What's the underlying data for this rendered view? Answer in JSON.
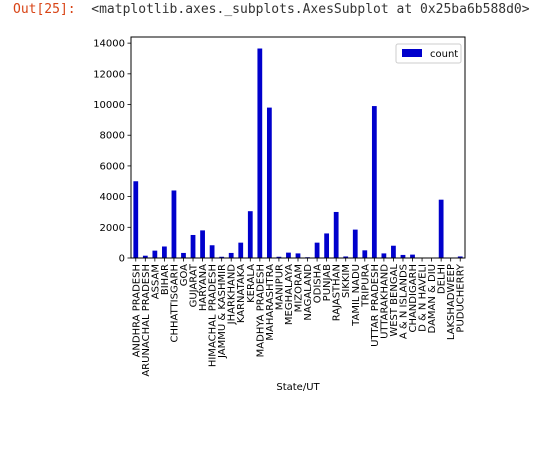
{
  "output": {
    "prompt": "Out[25]:",
    "repr": "<matplotlib.axes._subplots.AxesSubplot at 0x25ba6b588d0>"
  },
  "chart_data": {
    "type": "bar",
    "xlabel": "State/UT",
    "ylabel": "",
    "ylim": [
      0,
      14400
    ],
    "yticks": [
      0,
      2000,
      4000,
      6000,
      8000,
      10000,
      12000,
      14000
    ],
    "bar_color": "#0000cc",
    "legend": {
      "position": "top-right"
    },
    "series": [
      {
        "name": "count"
      }
    ],
    "categories": [
      "ANDHRA PRADESH",
      "ARUNACHAL PRADESH",
      "ASSAM",
      "BIHAR",
      "CHHATTISGARH",
      "GOA",
      "GUJARAT",
      "HARYANA",
      "HIMACHAL PRADESH",
      "JAMMU & KASHMIR",
      "JHARKHAND",
      "KARNATAKA",
      "KERALA",
      "MADHYA PRADESH",
      "MAHARASHTRA",
      "MANIPUR",
      "MEGHALAYA",
      "MIZORAM",
      "NAGALAND",
      "ODISHA",
      "PUNJAB",
      "RAJASTHAN",
      "SIKKIM",
      "TAMIL NADU",
      "TRIPURA",
      "UTTAR PRADESH",
      "UTTARAKHAND",
      "WEST BENGAL",
      "A & N ISLANDS",
      "CHANDIGARH",
      "D & N HAVELI",
      "DAMAN & DIU",
      "DELHI",
      "LAKSHADWEEP",
      "PUDUCHERRY"
    ],
    "values": [
      5000,
      150,
      480,
      750,
      4400,
      330,
      1500,
      1800,
      830,
      80,
      330,
      1000,
      3050,
      13650,
      9800,
      80,
      350,
      300,
      50,
      1000,
      1600,
      3000,
      100,
      1850,
      500,
      9900,
      300,
      800,
      200,
      220,
      30,
      30,
      3800,
      20,
      100
    ]
  }
}
